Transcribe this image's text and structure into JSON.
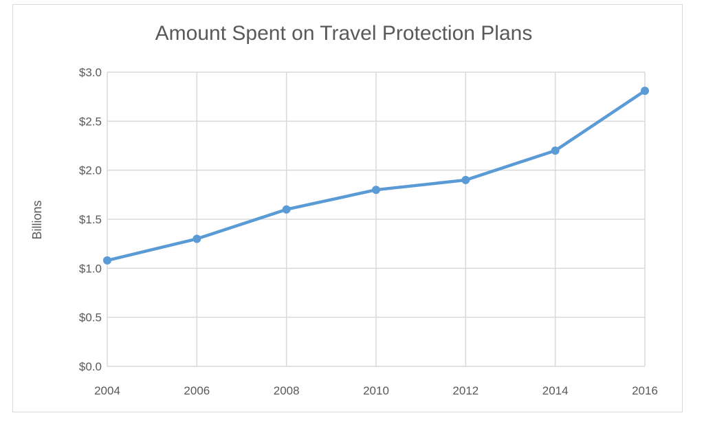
{
  "chart_data": {
    "type": "line",
    "title": "Amount Spent on Travel Protection Plans",
    "xlabel": "",
    "ylabel": "Billions",
    "x": [
      2004,
      2006,
      2008,
      2010,
      2012,
      2014,
      2016
    ],
    "x_tick_labels": [
      "2004",
      "2006",
      "2008",
      "2010",
      "2012",
      "2014",
      "2016"
    ],
    "y_tick_values": [
      0,
      0.5,
      1.0,
      1.5,
      2.0,
      2.5,
      3.0
    ],
    "y_tick_labels": [
      "$0.0",
      "$0.5",
      "$1.0",
      "$1.5",
      "$2.0",
      "$2.5",
      "$3.0"
    ],
    "ylim": [
      0,
      3.0
    ],
    "grid": true,
    "legend": "none",
    "series": [
      {
        "values": [
          1.08,
          1.3,
          1.6,
          1.8,
          1.9,
          2.2,
          2.81
        ],
        "color": "#5b9bd5"
      }
    ],
    "colors": {
      "line": "#5b9bd5",
      "grid": "#d9d9d9",
      "text": "#595959"
    }
  }
}
